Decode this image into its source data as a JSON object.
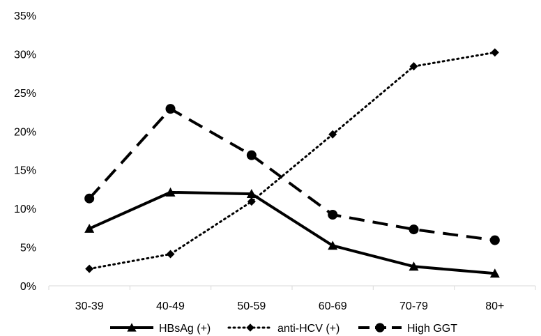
{
  "chart_data": {
    "type": "line",
    "title": "",
    "xlabel": "",
    "ylabel": "",
    "categories": [
      "30-39",
      "40-49",
      "50-59",
      "60-69",
      "70-79",
      "80+"
    ],
    "ylim": [
      0,
      35
    ],
    "yticks": [
      0,
      5,
      10,
      15,
      20,
      25,
      30,
      35
    ],
    "ytick_labels": [
      "0%",
      "5%",
      "10%",
      "15%",
      "20%",
      "25%",
      "30%",
      "35%"
    ],
    "grid": false,
    "legend_position": "bottom",
    "series": [
      {
        "name": "HBsAg (+)",
        "values": [
          7.4,
          12.1,
          11.9,
          5.2,
          2.5,
          1.6
        ],
        "marker": "triangle",
        "line": "solid",
        "color": "#000000"
      },
      {
        "name": "anti-HCV (+)",
        "values": [
          2.2,
          4.1,
          10.9,
          19.6,
          28.4,
          30.2
        ],
        "marker": "diamond",
        "line": "dotted",
        "color": "#000000"
      },
      {
        "name": "High GGT",
        "values": [
          11.3,
          22.9,
          16.9,
          9.2,
          7.3,
          5.9
        ],
        "marker": "circle",
        "line": "dashed",
        "color": "#000000"
      }
    ]
  }
}
